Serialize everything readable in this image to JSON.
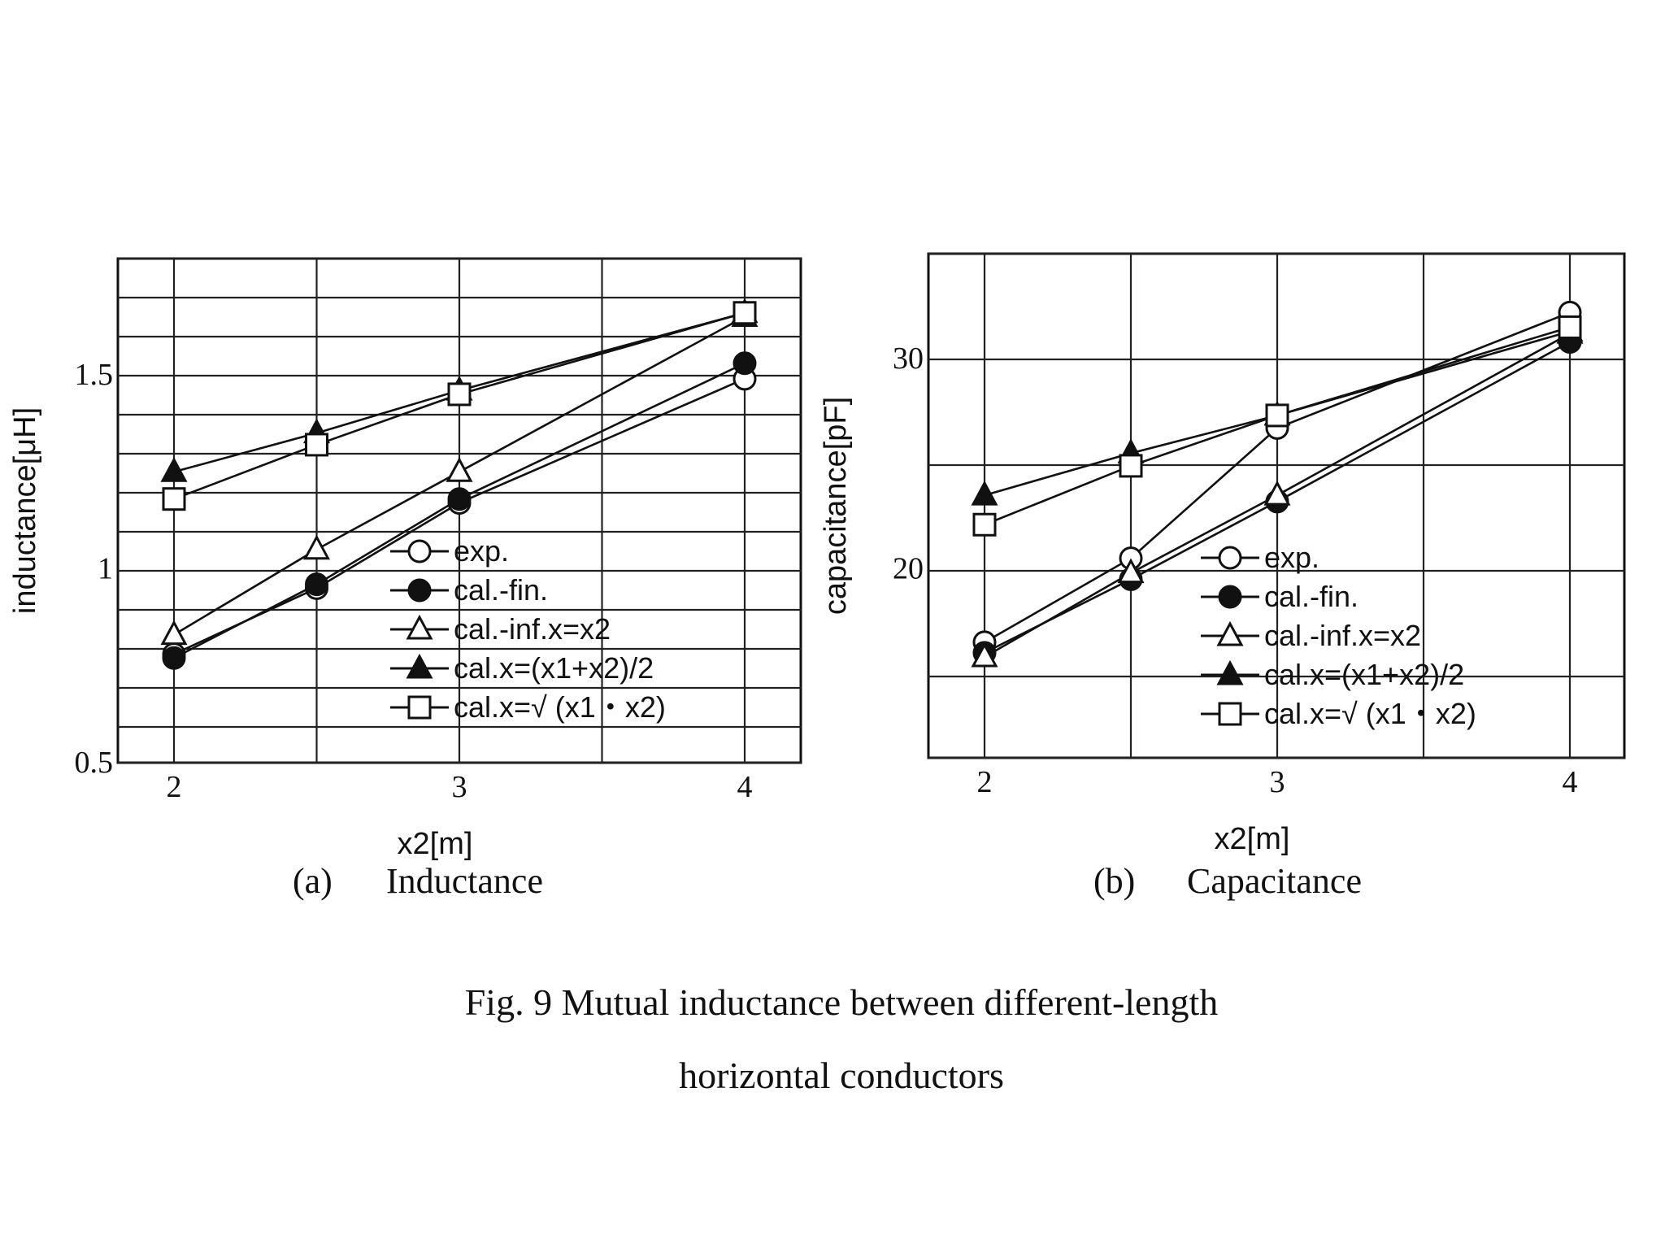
{
  "figure": {
    "caption_line1": "Fig. 9    Mutual inductance between different-length",
    "caption_line2": "horizontal conductors"
  },
  "chart_data": [
    {
      "id": "a",
      "type": "line",
      "subtitle_letter": "(a)",
      "subtitle": "Inductance",
      "xlabel": "x2[m]",
      "ylabel": "inductance[μH]",
      "xlim": [
        1.8,
        4.2
      ],
      "ylim": [
        0.5,
        1.8
      ],
      "xticks": [
        2,
        3,
        4
      ],
      "xtick_labels": [
        "2",
        "3",
        "4"
      ],
      "yticks": [
        0.5,
        1,
        1.5
      ],
      "ytick_labels": [
        "0.5",
        "1",
        "1.5"
      ],
      "grid": true,
      "legend_position": "bottom-right",
      "categories": [
        2,
        2.5,
        3,
        4
      ],
      "series": [
        {
          "name": "exp.",
          "marker": "circle-open",
          "values": [
            0.78,
            0.95,
            1.17,
            1.49
          ]
        },
        {
          "name": "cal.-fin.",
          "marker": "circle-filled",
          "values": [
            0.77,
            0.96,
            1.18,
            1.53
          ]
        },
        {
          "name": "cal.-inf.x=x2",
          "marker": "triangle-open",
          "values": [
            0.83,
            1.05,
            1.25,
            1.65
          ]
        },
        {
          "name": "cal.x=(x1+x2)/2",
          "marker": "triangle-filled",
          "values": [
            1.25,
            1.35,
            1.46,
            1.66
          ]
        },
        {
          "name": "cal.x=√ (x1・x2)",
          "marker": "square-open",
          "values": [
            1.18,
            1.32,
            1.45,
            1.66
          ]
        }
      ]
    },
    {
      "id": "b",
      "type": "line",
      "subtitle_letter": "(b)",
      "subtitle": "Capacitance",
      "xlabel": "x2[m]",
      "ylabel": "capacitance[pF]",
      "xlim": [
        1.8,
        4.2
      ],
      "ylim": [
        11,
        35
      ],
      "xticks": [
        2,
        3,
        4
      ],
      "xtick_labels": [
        "2",
        "3",
        "4"
      ],
      "yticks": [
        20,
        30
      ],
      "ytick_labels": [
        "20",
        "30"
      ],
      "grid": true,
      "legend_position": "bottom-right",
      "categories": [
        2,
        2.5,
        3,
        4
      ],
      "series": [
        {
          "name": "exp.",
          "marker": "circle-open",
          "values": [
            16.5,
            20.5,
            26.7,
            32.2
          ]
        },
        {
          "name": "cal.-fin.",
          "marker": "circle-filled",
          "values": [
            16.0,
            19.5,
            23.2,
            30.8
          ]
        },
        {
          "name": "cal.-inf.x=x2",
          "marker": "triangle-open",
          "values": [
            15.8,
            19.8,
            23.5,
            31.2
          ]
        },
        {
          "name": "cal.x=(x1+x2)/2",
          "marker": "triangle-filled",
          "values": [
            23.5,
            25.5,
            27.3,
            31.3
          ]
        },
        {
          "name": "cal.x=√ (x1・x2)",
          "marker": "square-open",
          "values": [
            22.1,
            24.9,
            27.3,
            31.5
          ]
        }
      ]
    }
  ]
}
